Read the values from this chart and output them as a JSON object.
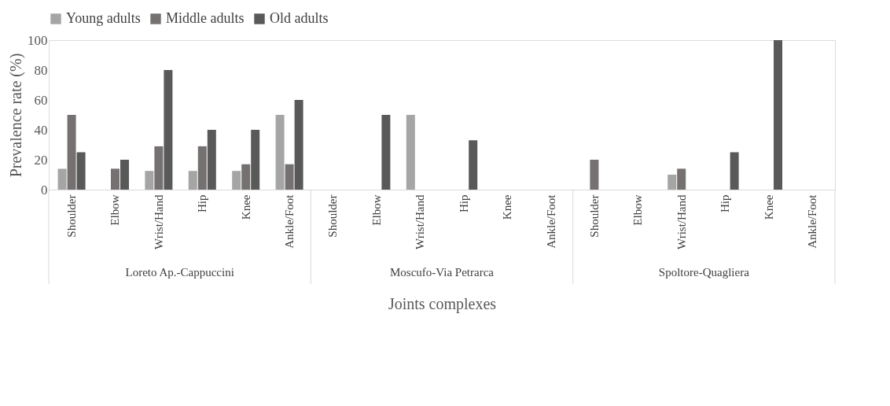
{
  "chart_data": {
    "type": "bar",
    "xlabel": "Joints complexes",
    "ylabel": "Prevalence rate (%)",
    "categories": [
      "Shoulder",
      "Elbow",
      "Wrist/Hand",
      "Hip",
      "Knee",
      "Ankle/Foot",
      "Shoulder",
      "Elbow",
      "Wrist/Hand",
      "Hip",
      "Knee",
      "Ankle/Foot",
      "Shoulder",
      "Elbow",
      "Wrist/Hand",
      "Hip",
      "Knee",
      "Ankle/Foot"
    ],
    "annotations": [
      "Loreto Ap.-Cappuccini",
      "Moscufo-Via Petrarca",
      "Spoltore-Quagliera"
    ],
    "series": [
      {
        "name": "Young adults",
        "color": "#a5a5a5",
        "values": [
          14,
          0,
          12.5,
          12.5,
          12.5,
          50,
          0,
          0,
          50,
          0,
          0,
          0,
          0,
          0,
          10,
          0,
          0,
          0
        ]
      },
      {
        "name": "Middle adults",
        "color": "#767171",
        "values": [
          50,
          14,
          29,
          29,
          17,
          17,
          0,
          0,
          0,
          0,
          0,
          0,
          20,
          0,
          14,
          0,
          0,
          0
        ]
      },
      {
        "name": "Old adults",
        "color": "#595959",
        "values": [
          25,
          20,
          80,
          40,
          40,
          60,
          0,
          50,
          0,
          33,
          0,
          0,
          0,
          0,
          0,
          25,
          100,
          0
        ]
      }
    ],
    "ylim": [
      0,
      100
    ],
    "yticks": [
      0,
      20,
      40,
      60,
      80,
      100
    ],
    "grid": false,
    "legend": "top"
  }
}
